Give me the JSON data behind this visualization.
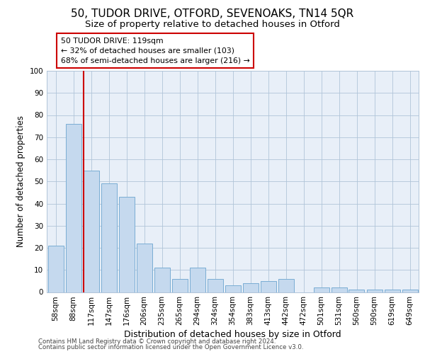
{
  "title1": "50, TUDOR DRIVE, OTFORD, SEVENOAKS, TN14 5QR",
  "title2": "Size of property relative to detached houses in Otford",
  "xlabel": "Distribution of detached houses by size in Otford",
  "ylabel": "Number of detached properties",
  "categories": [
    "58sqm",
    "88sqm",
    "117sqm",
    "147sqm",
    "176sqm",
    "206sqm",
    "235sqm",
    "265sqm",
    "294sqm",
    "324sqm",
    "354sqm",
    "383sqm",
    "413sqm",
    "442sqm",
    "472sqm",
    "501sqm",
    "531sqm",
    "560sqm",
    "590sqm",
    "619sqm",
    "649sqm"
  ],
  "values": [
    21,
    76,
    55,
    49,
    43,
    22,
    11,
    6,
    11,
    6,
    3,
    4,
    5,
    6,
    0,
    2,
    2,
    1,
    1,
    1,
    1
  ],
  "bar_color": "#c5d9ee",
  "bar_edge_color": "#7aadd4",
  "subject_label": "50 TUDOR DRIVE: 119sqm",
  "annotation_line1": "← 32% of detached houses are smaller (103)",
  "annotation_line2": "68% of semi-detached houses are larger (216) →",
  "annotation_box_color": "#ffffff",
  "annotation_box_edge": "#cc0000",
  "subject_line_color": "#cc0000",
  "ylim": [
    0,
    100
  ],
  "yticks": [
    0,
    10,
    20,
    30,
    40,
    50,
    60,
    70,
    80,
    90,
    100
  ],
  "footer1": "Contains HM Land Registry data © Crown copyright and database right 2024.",
  "footer2": "Contains public sector information licensed under the Open Government Licence v3.0.",
  "bg_color": "#e8eff8",
  "title1_fontsize": 11,
  "title2_fontsize": 9.5,
  "xlabel_fontsize": 9,
  "ylabel_fontsize": 8.5,
  "tick_fontsize": 7.5,
  "annotation_fontsize": 7.8,
  "footer_fontsize": 6.2
}
